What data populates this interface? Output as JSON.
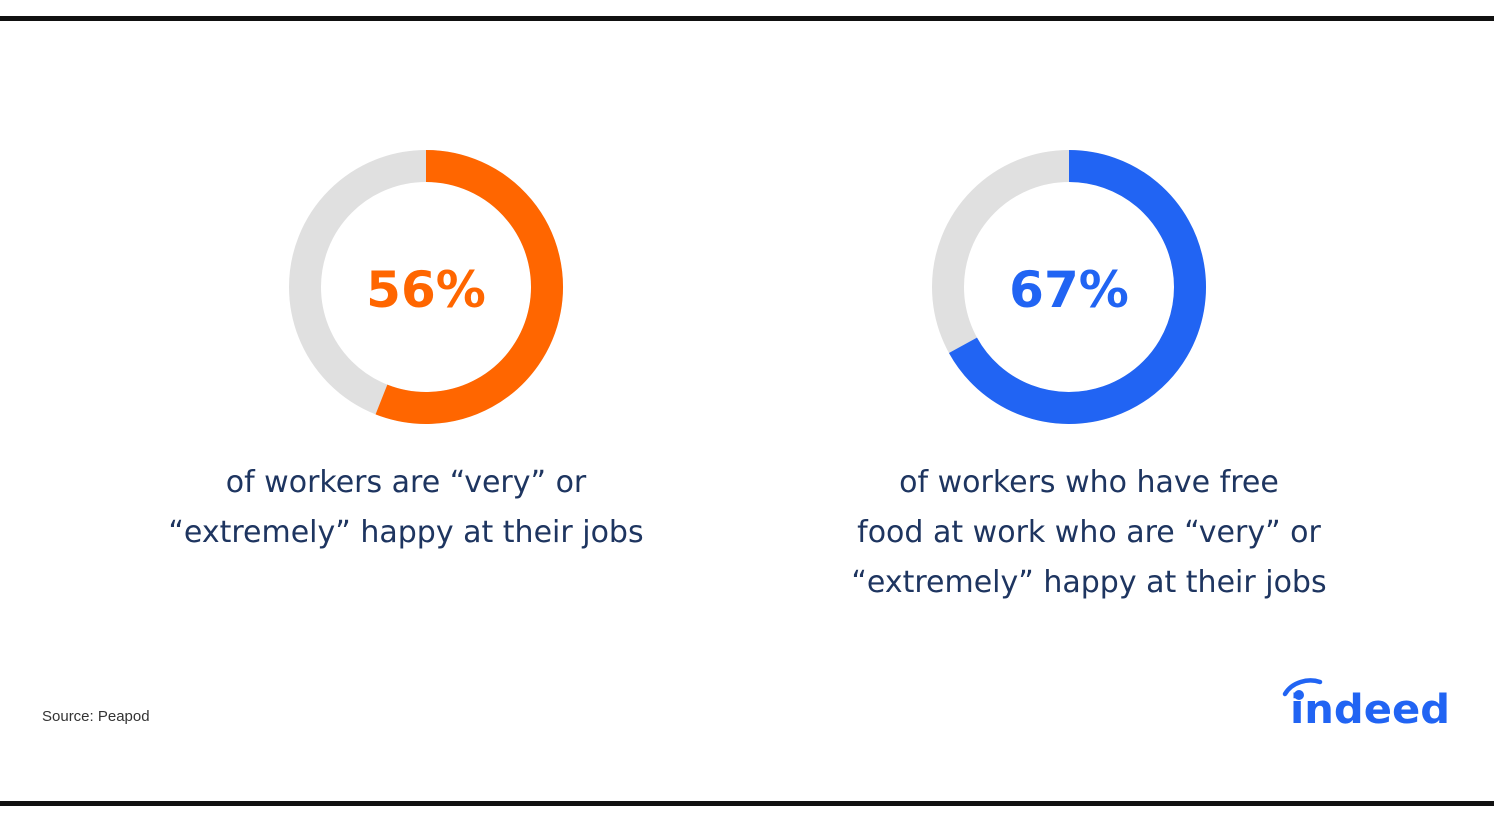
{
  "chart_data": [
    {
      "type": "pie",
      "style": "donut",
      "value": 56,
      "remainder": 44,
      "label": "56%",
      "caption_lines": [
        "of workers are “very” or",
        "“extremely” happy at their jobs"
      ],
      "color": "#ff6600",
      "track_color": "#e0e0e0"
    },
    {
      "type": "pie",
      "style": "donut",
      "value": 67,
      "remainder": 33,
      "label": "67%",
      "caption_lines": [
        "of workers who have free",
        "food at work who are “very” or",
        "“extremely” happy at their jobs"
      ],
      "color": "#2164f3",
      "track_color": "#e0e0e0"
    }
  ],
  "source": "Source: Peapod",
  "logo": {
    "text": "indeed",
    "color": "#2164f3"
  },
  "colors": {
    "caption_text": "#1e3560",
    "rule": "#111111"
  }
}
